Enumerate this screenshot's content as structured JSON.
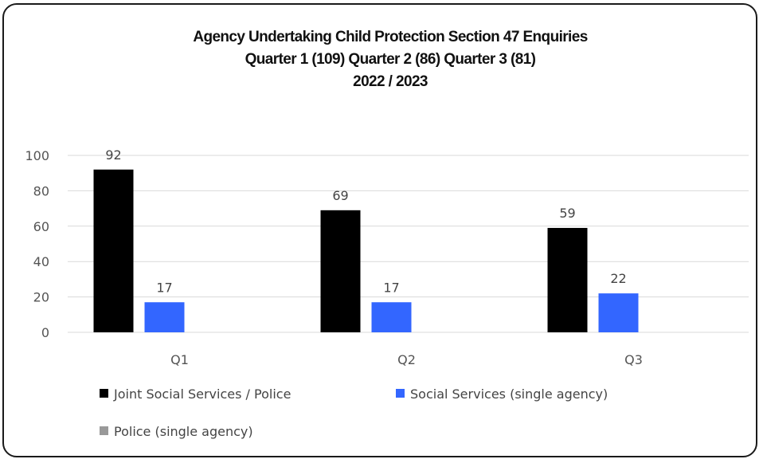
{
  "chart_data": {
    "type": "bar",
    "title_lines": [
      "Agency Undertaking Child Protection Section 47 Enquiries",
      "Quarter 1 (109)  Quarter 2 (86) Quarter 3 (81)",
      "2022 / 2023"
    ],
    "categories": [
      "Q1",
      "Q2",
      "Q3"
    ],
    "series": [
      {
        "name": "Joint Social Services / Police",
        "values": [
          92,
          69,
          59
        ],
        "color": "#000000"
      },
      {
        "name": "Social Services (single agency)",
        "values": [
          17,
          17,
          22
        ],
        "color": "#3366ff"
      },
      {
        "name": "Police (single agency)",
        "values": [
          0,
          0,
          0
        ],
        "color": "#999999"
      }
    ],
    "ylim": [
      0,
      100
    ],
    "yticks": [
      "0",
      "20",
      "40",
      "60",
      "80",
      "100"
    ],
    "grid": true,
    "legend_position": "bottom-left",
    "data_labels_shown_for_series": [
      0,
      1
    ]
  }
}
